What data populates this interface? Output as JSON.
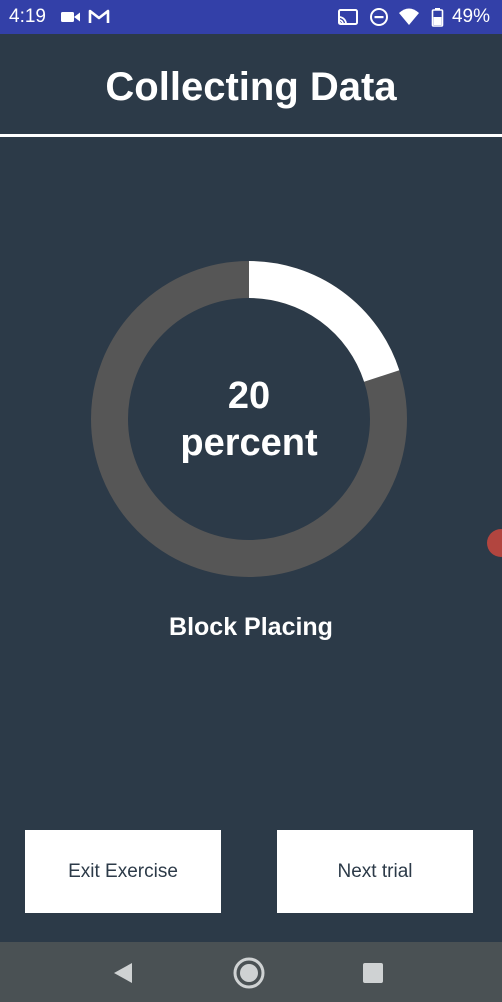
{
  "status_bar": {
    "time": "4:19",
    "battery_percent": "49%",
    "icons": [
      "video-camera-icon",
      "gmail-icon",
      "cast-icon",
      "do-not-disturb-icon",
      "wifi-icon",
      "battery-icon"
    ],
    "background": "#3340a8"
  },
  "header": {
    "title": "Collecting Data"
  },
  "progress": {
    "value": 20,
    "value_text": "20",
    "unit_text": "percent",
    "fill_color": "#ffffff",
    "track_color": "#565656"
  },
  "exercise": {
    "name": "Block Placing"
  },
  "buttons": {
    "exit_label": "Exit Exercise",
    "next_label": "Next trial"
  },
  "nav_bar": {
    "icons": [
      "back-icon",
      "home-icon",
      "recents-icon"
    ]
  },
  "colors": {
    "background": "#2c3a48",
    "accent_handle": "#b2453f"
  }
}
